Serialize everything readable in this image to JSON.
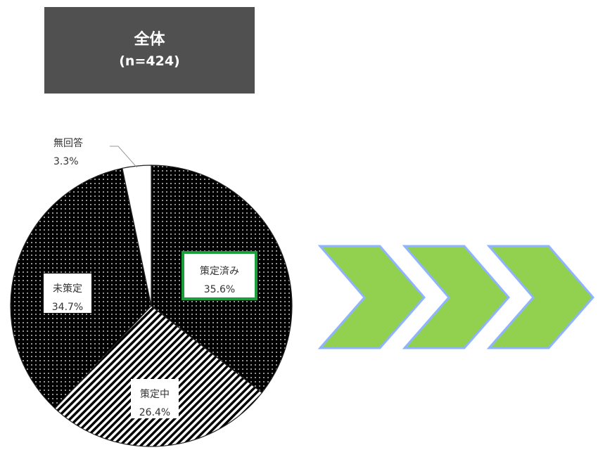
{
  "header": {
    "title": "全体",
    "subtitle": "(n=424)"
  },
  "chart_data": {
    "type": "pie",
    "slices": [
      {
        "label": "策定済み",
        "value": 35.6,
        "display": "35.6%",
        "pattern": "dots",
        "highlight": true
      },
      {
        "label": "策定中",
        "value": 26.4,
        "display": "26.4%",
        "pattern": "stripes",
        "highlight": false
      },
      {
        "label": "未策定",
        "value": 34.7,
        "display": "34.7%",
        "pattern": "dots",
        "highlight": false
      },
      {
        "label": "無回答",
        "value": 3.3,
        "display": "3.3%",
        "pattern": "none",
        "highlight": false
      }
    ],
    "highlight_color": "#1a9e3a"
  },
  "arrows": {
    "count": 3,
    "fill": "#92d050",
    "stroke": "#8fb4ff"
  }
}
